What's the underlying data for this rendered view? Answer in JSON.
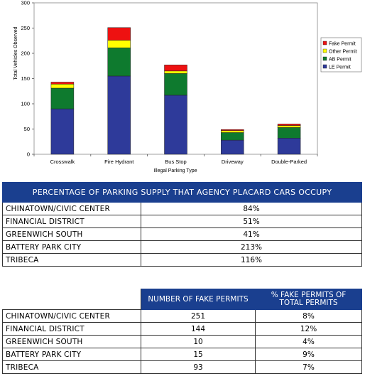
{
  "chart_data": {
    "type": "bar",
    "stacked": true,
    "categories": [
      "Crosswalk",
      "Fire Hydrant",
      "Bus Stop",
      "Driveway",
      "Double-Parked"
    ],
    "series": [
      {
        "name": "LE Permit",
        "color": "#2e3a9a",
        "values": [
          90,
          155,
          117,
          28,
          32
        ]
      },
      {
        "name": "AB Permit",
        "color": "#0e7a2e",
        "values": [
          41,
          56,
          43,
          15,
          21
        ]
      },
      {
        "name": "Other Permit",
        "color": "#ffff00",
        "values": [
          8,
          15,
          5,
          4,
          4
        ]
      },
      {
        "name": "Fake Permit",
        "color": "#ee1111",
        "values": [
          4,
          25,
          12,
          2,
          3
        ]
      }
    ],
    "legend_order": [
      "Fake Permit",
      "Other Permit",
      "AB Permit",
      "LE Permit"
    ],
    "xlabel": "Illegal Parking Type",
    "ylabel": "Total Vehicles Observed",
    "ylim": [
      0,
      300
    ],
    "yticks": [
      0,
      50,
      100,
      150,
      200,
      250,
      300
    ],
    "legend_position": "right",
    "plot_background": "#ffffff"
  },
  "table1": {
    "title": "PERCENTAGE OF PARKING SUPPLY THAT AGENCY PLACARD CARS OCCUPY",
    "rows": [
      {
        "name": "CHINATOWN/CIVIC CENTER",
        "value": "84%"
      },
      {
        "name": "FINANCIAL DISTRICT",
        "value": "51%"
      },
      {
        "name": "GREENWICH SOUTH",
        "value": "41%"
      },
      {
        "name": "BATTERY PARK CITY",
        "value": "213%"
      },
      {
        "name": "TRIBECA",
        "value": "116%"
      }
    ]
  },
  "table2": {
    "col1": "NUMBER OF FAKE PERMITS",
    "col2": "% FAKE PERMITS OF TOTAL PERMITS",
    "rows": [
      {
        "name": "CHINATOWN/CIVIC CENTER",
        "fake": "251",
        "pct": "8%"
      },
      {
        "name": "FINANCIAL DISTRICT",
        "fake": "144",
        "pct": "12%"
      },
      {
        "name": "GREENWICH SOUTH",
        "fake": "10",
        "pct": "4%"
      },
      {
        "name": "BATTERY PARK CITY",
        "fake": "15",
        "pct": "9%"
      },
      {
        "name": "TRIBECA",
        "fake": "93",
        "pct": "7%"
      }
    ]
  },
  "colors": {
    "table_header": "#1a3f8f"
  }
}
